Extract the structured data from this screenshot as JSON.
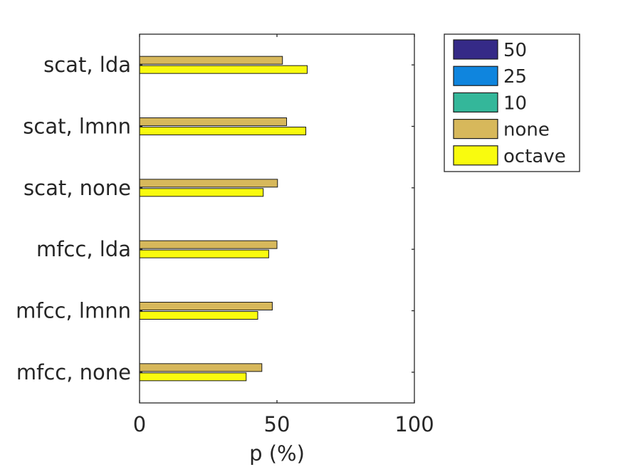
{
  "chart_data": {
    "type": "bar",
    "orientation": "horizontal",
    "title": "",
    "xlabel": "p (%)",
    "ylabel": "",
    "xlim": [
      0,
      100
    ],
    "xticks": [
      "0",
      "50",
      "100"
    ],
    "categories": [
      "scat, lda",
      "scat, lmnn",
      "scat, none",
      "mfcc, lda",
      "mfcc, lmnn",
      "mfcc, none"
    ],
    "series": [
      {
        "name": "50",
        "color": "#352a87",
        "values": [
          0,
          0,
          0,
          0,
          0,
          0
        ]
      },
      {
        "name": "25",
        "color": "#0f85de",
        "values": [
          0,
          0,
          0,
          0,
          0,
          0
        ]
      },
      {
        "name": "10",
        "color": "#34b79a",
        "values": [
          0,
          0,
          0,
          0,
          0,
          0
        ]
      },
      {
        "name": "none",
        "color": "#d7b85b",
        "values": [
          52,
          53.5,
          50.2,
          50,
          48.3,
          44.5
        ]
      },
      {
        "name": "octave",
        "color": "#f9fb0e",
        "values": [
          61,
          60.5,
          45,
          47,
          43,
          38.8
        ]
      }
    ],
    "legend_position": "outside-top-right",
    "grid": false
  }
}
